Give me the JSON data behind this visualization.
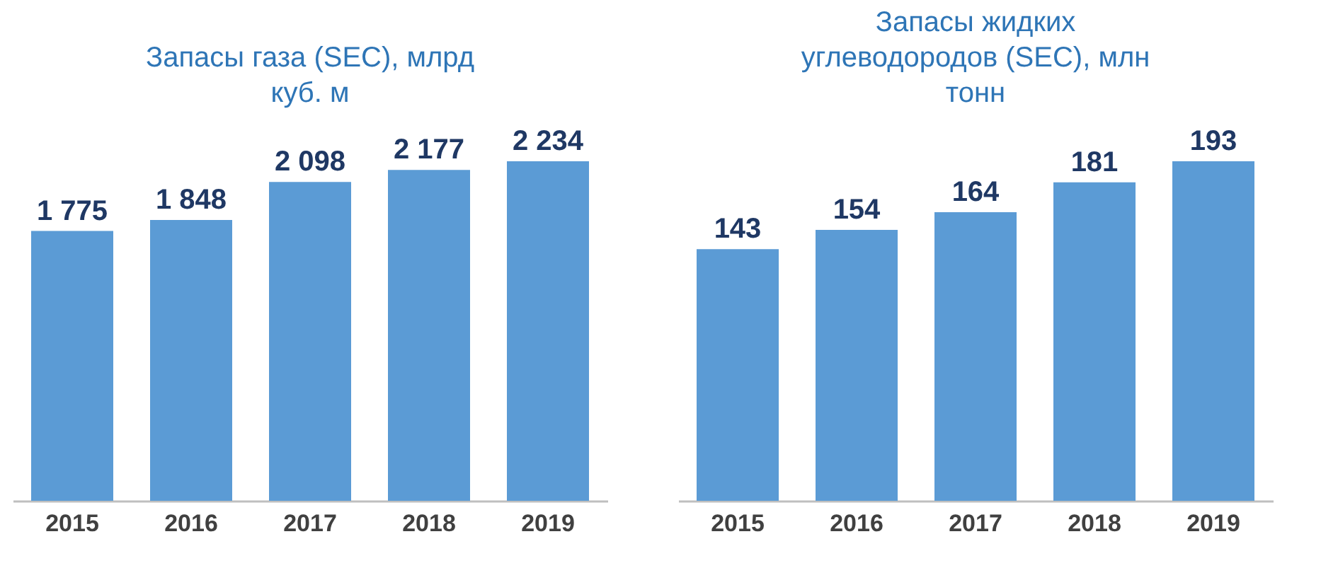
{
  "chart_data": [
    {
      "type": "bar",
      "title": "Запасы газа (SEC), млрд куб. м",
      "categories": [
        "2015",
        "2016",
        "2017",
        "2018",
        "2019"
      ],
      "values": [
        1775,
        1848,
        2098,
        2177,
        2234
      ],
      "color": "#5b9bd5",
      "data_labels": true
    },
    {
      "type": "bar",
      "title": "Запасы жидких углеводородов (SEC), млн тонн",
      "categories": [
        "2015",
        "2016",
        "2017",
        "2018",
        "2019"
      ],
      "values": [
        143,
        154,
        164,
        181,
        193
      ],
      "color": "#5b9bd5",
      "data_labels": true
    }
  ]
}
